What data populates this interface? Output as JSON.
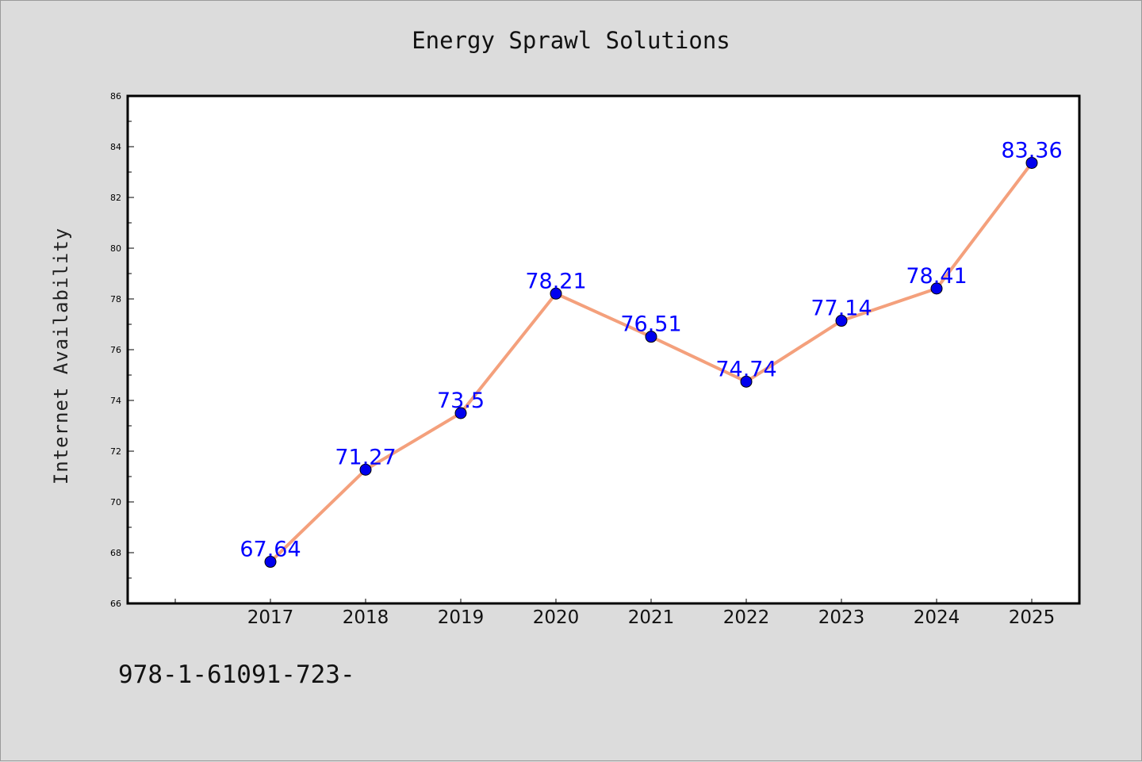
{
  "figure": {
    "footer_text": "978-1-61091-723-"
  },
  "chart_data": {
    "type": "line",
    "title": "Energy Sprawl Solutions",
    "xlabel": "",
    "ylabel": "Internet Availability",
    "categories": [
      "2017",
      "2018",
      "2019",
      "2020",
      "2021",
      "2022",
      "2023",
      "2024",
      "2025"
    ],
    "x_range": [
      2015.5,
      2025.5
    ],
    "values": [
      67.64,
      71.27,
      73.5,
      78.21,
      76.51,
      74.74,
      77.14,
      78.41,
      83.36
    ],
    "data_labels": [
      "67.64",
      "71.27",
      "73.5",
      "78.21",
      "76.51",
      "74.74",
      "77.14",
      "78.41",
      "83.36"
    ],
    "ylim": [
      66,
      86
    ],
    "y_ticks": [
      "66",
      "68",
      "70",
      "72",
      "74",
      "76",
      "78",
      "80",
      "82",
      "84",
      "86"
    ],
    "line_color": "#f4a07c",
    "marker_color": "#0000ee",
    "label_color": "#0000ff",
    "grid": false,
    "legend": "none"
  }
}
